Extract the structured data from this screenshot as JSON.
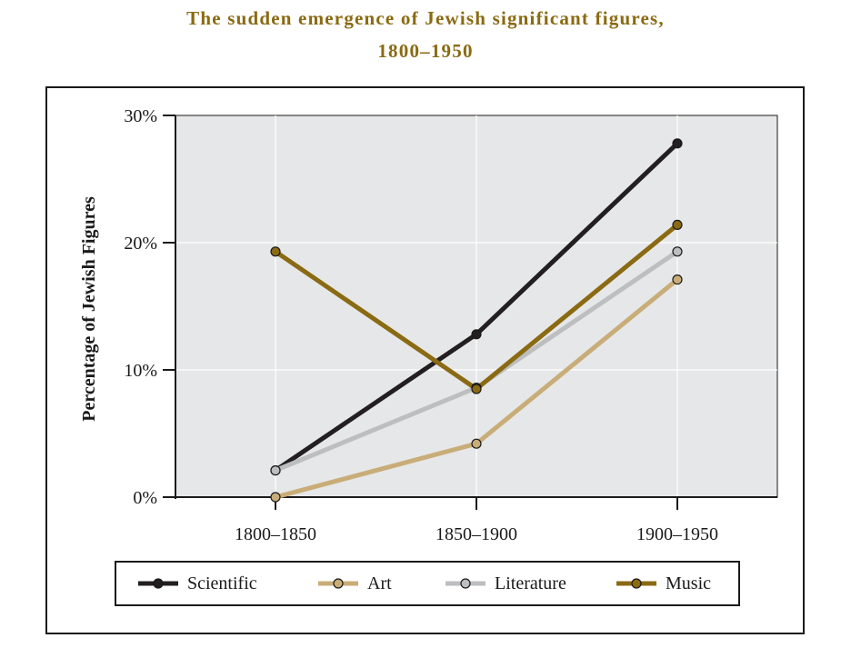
{
  "title_lines": [
    "The sudden emergence of Jewish significant figures,",
    "1800–1950"
  ],
  "colors": {
    "title": "#8a6a12",
    "plot_background": "#e6e7e8",
    "Scientific": "#231f20",
    "Art": "#c8ad78",
    "Literature": "#bcbec0",
    "Music": "#8a6a12"
  },
  "chart_data": {
    "type": "line",
    "title": "The sudden emergence of Jewish significant figures, 1800–1950",
    "xlabel": "",
    "ylabel": "Percentage of Jewish Figures",
    "categories": [
      "1800–1850",
      "1850–1900",
      "1900–1950"
    ],
    "y_ticks": [
      "0%",
      "10%",
      "20%",
      "30%"
    ],
    "ylim": [
      0,
      30
    ],
    "grid": true,
    "legend_position": "bottom",
    "series": [
      {
        "name": "Scientific",
        "values": [
          2.1,
          12.8,
          27.8
        ],
        "color": "#231f20",
        "marker_fill": "#231f20"
      },
      {
        "name": "Art",
        "values": [
          0,
          4.2,
          17.1
        ],
        "color": "#c8ad78",
        "marker_fill": "#c8ad78"
      },
      {
        "name": "Literature",
        "values": [
          2.1,
          8.6,
          19.3
        ],
        "color": "#bcbec0",
        "marker_fill": "#bcbec0"
      },
      {
        "name": "Music",
        "values": [
          19.3,
          8.5,
          21.4
        ],
        "color": "#8a6a12",
        "marker_fill": "#8a6a12"
      }
    ]
  }
}
